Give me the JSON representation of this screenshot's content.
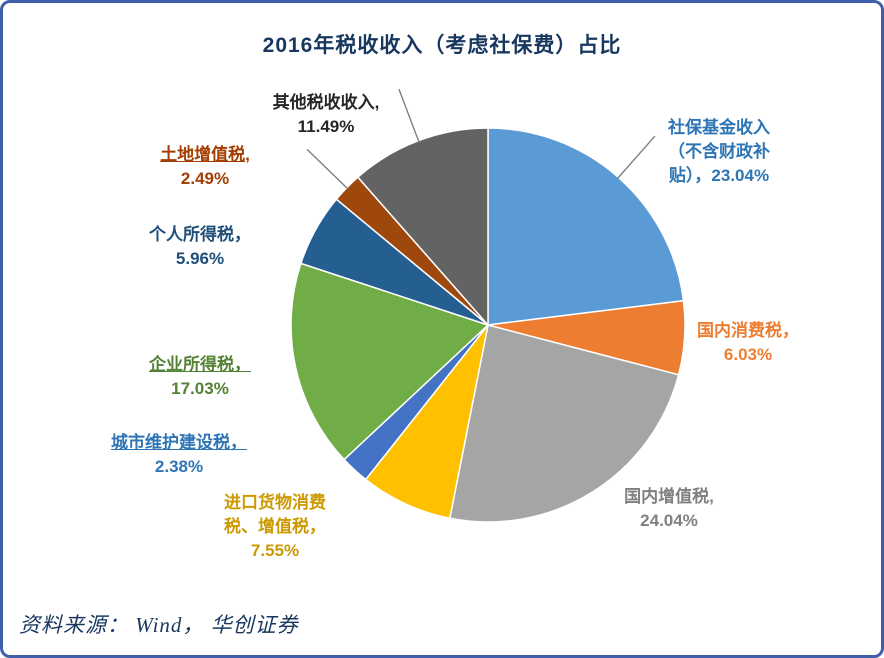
{
  "frame": {
    "border_color": "#3f5eab",
    "background": "#ffffff"
  },
  "title": {
    "text": "2016年税收收入（考虑社保费）占比",
    "color": "#17375e"
  },
  "source": {
    "text": "资料来源： Wind， 华创证券",
    "color": "#17375e"
  },
  "chart_data": {
    "type": "pie",
    "title": "2016年税收收入（考虑社保费）占比",
    "unit": "%",
    "start_angle_deg": 0,
    "direction": "clockwise",
    "legend_position": "none",
    "slices": [
      {
        "label": "社保基金收入（不含财政补贴）",
        "value": 23.04,
        "color": "#5B9BD5",
        "leader": true
      },
      {
        "label": "国内消费税",
        "value": 6.03,
        "color": "#ED7D31",
        "leader": false
      },
      {
        "label": "国内增值税",
        "value": 24.04,
        "color": "#A5A5A5",
        "leader": false
      },
      {
        "label": "进口货物消费税、增值税",
        "value": 7.55,
        "color": "#FFC000",
        "leader": false
      },
      {
        "label": "城市维护建设税",
        "value": 2.38,
        "color": "#4472C4",
        "leader": false
      },
      {
        "label": "企业所得税",
        "value": 17.03,
        "color": "#70AD47",
        "leader": false
      },
      {
        "label": "个人所得税",
        "value": 5.96,
        "color": "#255E91",
        "leader": false
      },
      {
        "label": "土地增值税",
        "value": 2.49,
        "color": "#9E480E",
        "leader": true
      },
      {
        "label": "其他税收收入",
        "value": 11.49,
        "color": "#636363",
        "leader": true
      }
    ],
    "leader_line_color": "#808080"
  },
  "labels": {
    "qita": {
      "line1": "其他税收收入,",
      "line2": "11.49%",
      "color": "#262626"
    },
    "shebao": {
      "line1": "社保基金收入",
      "line2": "（不含财政补",
      "line3": "贴），23.04%",
      "color": "#2E75B6"
    },
    "xiaofei": {
      "line1": "国内消费税，",
      "line2": "6.03%",
      "color": "#ED7D31"
    },
    "zengzhi": {
      "line1": "国内增值税,",
      "line2": "24.04%",
      "color": "#808080"
    },
    "jinkou": {
      "line1": "进口货物消费",
      "line2": "税、增值税，",
      "line3": "7.55%",
      "color": "#CC9900"
    },
    "chengshi": {
      "line1": "城市维护建设税，",
      "line2": "2.38%",
      "color": "#2E75B6"
    },
    "qiye": {
      "line1": "企业所得税，",
      "line2": "17.03%",
      "color": "#538135"
    },
    "geren": {
      "line1": "个人所得税，",
      "line2": "5.96%",
      "color": "#1F4E79"
    },
    "tudi": {
      "line1": "土地增值税,",
      "line2": "2.49%",
      "color": "#A33E03"
    }
  }
}
